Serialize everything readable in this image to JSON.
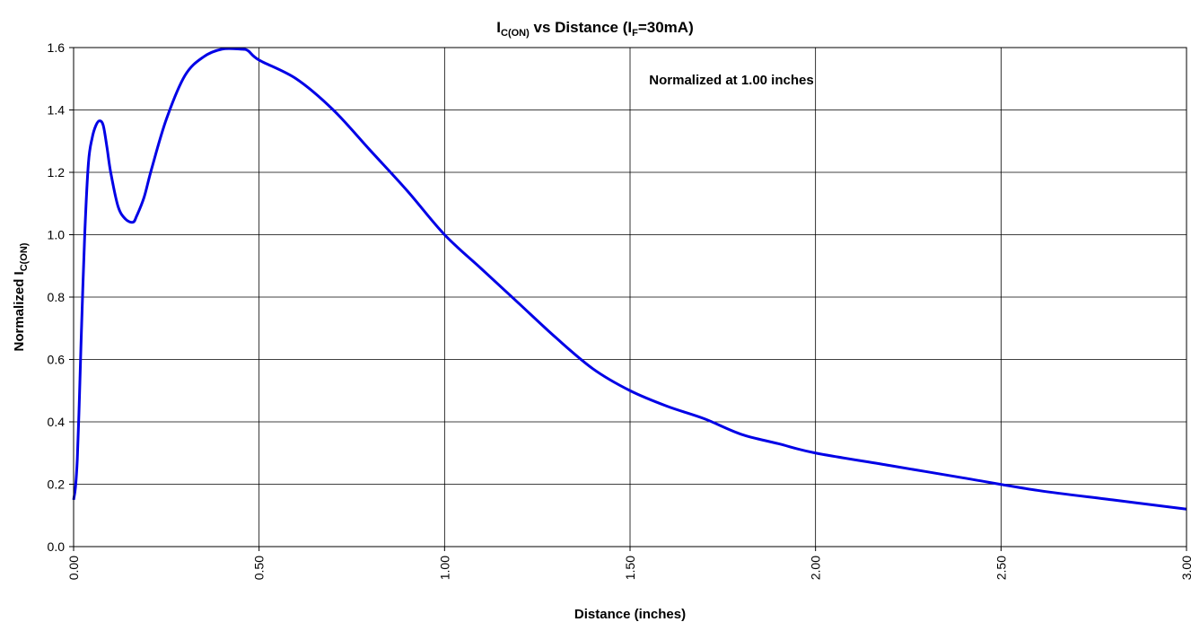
{
  "chart_data": {
    "type": "line",
    "title": {
      "prefix": "I",
      "prefix_sub": "C(ON)",
      "middle": " vs Distance (I",
      "middle_sub": "F",
      "suffix": "=30mA)"
    },
    "xlabel": "Distance (inches)",
    "ylabel": {
      "main": "Normalized I",
      "sub": "C(ON)"
    },
    "annotation": "Normalized at 1.00 inches",
    "xlim": [
      0,
      3
    ],
    "ylim": [
      0,
      1.6
    ],
    "x_ticks": [
      0,
      0.5,
      1.0,
      1.5,
      2.0,
      2.5,
      3.0
    ],
    "x_tick_labels": [
      "0.00",
      "0.50",
      "1.00",
      "1.50",
      "2.00",
      "2.50",
      "3.00"
    ],
    "y_ticks": [
      0,
      0.2,
      0.4,
      0.6,
      0.8,
      1.0,
      1.2,
      1.4,
      1.6
    ],
    "y_tick_labels": [
      "0.0",
      "0.2",
      "0.4",
      "0.6",
      "0.8",
      "1.0",
      "1.2",
      "1.4",
      "1.6"
    ],
    "grid": true,
    "series": [
      {
        "color": "#0000e6",
        "x": [
          0.0,
          0.005,
          0.01,
          0.015,
          0.02,
          0.03,
          0.04,
          0.05,
          0.06,
          0.07,
          0.08,
          0.09,
          0.1,
          0.12,
          0.14,
          0.16,
          0.17,
          0.19,
          0.21,
          0.25,
          0.3,
          0.35,
          0.4,
          0.45,
          0.47,
          0.5,
          0.6,
          0.7,
          0.8,
          0.9,
          1.0,
          1.1,
          1.2,
          1.3,
          1.4,
          1.5,
          1.6,
          1.7,
          1.8,
          1.9,
          2.0,
          2.2,
          2.4,
          2.6,
          2.8,
          3.0
        ],
        "y": [
          0.15,
          0.19,
          0.28,
          0.45,
          0.65,
          1.0,
          1.23,
          1.31,
          1.35,
          1.365,
          1.35,
          1.28,
          1.2,
          1.09,
          1.05,
          1.04,
          1.06,
          1.12,
          1.21,
          1.37,
          1.51,
          1.57,
          1.595,
          1.595,
          1.59,
          1.56,
          1.5,
          1.4,
          1.27,
          1.14,
          1.0,
          0.89,
          0.78,
          0.67,
          0.57,
          0.5,
          0.45,
          0.41,
          0.36,
          0.33,
          0.3,
          0.26,
          0.22,
          0.18,
          0.15,
          0.12
        ]
      }
    ]
  }
}
